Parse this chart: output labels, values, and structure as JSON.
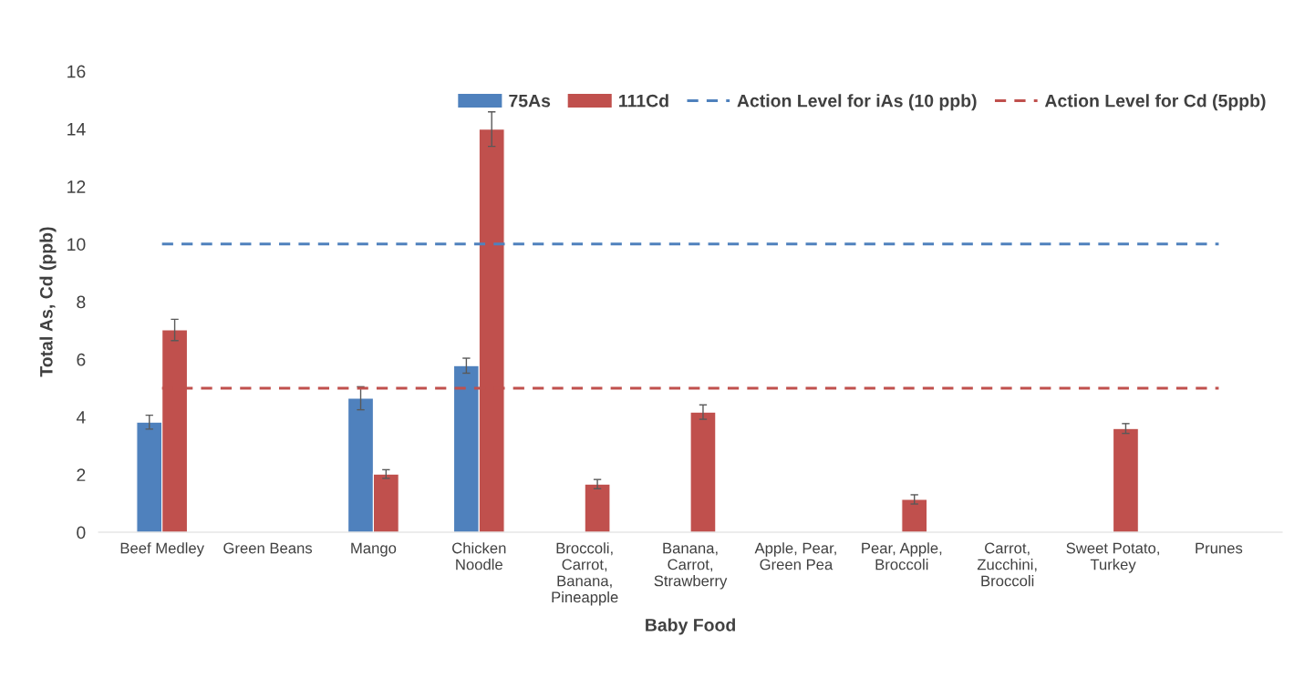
{
  "chart_data": {
    "type": "bar",
    "xlabel": "Baby Food",
    "ylabel": "Total As, Cd (ppb)",
    "categories": [
      "Beef Medley",
      "Green Beans",
      "Mango",
      "Chicken\nNoodle",
      "Broccoli,\nCarrot,\nBanana,\nPineapple",
      "Banana,\nCarrot,\nStrawberry",
      "Apple, Pear,\nGreen Pea",
      "Pear, Apple,\nBroccoli",
      "Carrot,\nZucchini,\nBroccoli",
      "Sweet Potato,\nTurkey",
      "Prunes"
    ],
    "series": [
      {
        "name": "75As",
        "color": "#4f81bd",
        "values": [
          3.82,
          null,
          4.65,
          5.78,
          null,
          null,
          null,
          null,
          null,
          null,
          null
        ],
        "errors": [
          0.24,
          null,
          0.4,
          0.26,
          null,
          null,
          null,
          null,
          null,
          null,
          null
        ]
      },
      {
        "name": "111Cd",
        "color": "#c0504d",
        "values": [
          7.02,
          null,
          2.02,
          13.99,
          1.67,
          4.17,
          null,
          1.14,
          null,
          3.6,
          null
        ],
        "errors": [
          0.37,
          null,
          0.15,
          0.6,
          0.16,
          0.25,
          null,
          0.16,
          null,
          0.17,
          null
        ]
      }
    ],
    "ref_lines": [
      {
        "axis": "y",
        "value": 10,
        "label": "Action Level for iAs (10 ppb)",
        "color": "#4f81bd",
        "line_style": "dashed"
      },
      {
        "axis": "y",
        "value": 5,
        "label": "Action Level for Cd (5ppb)",
        "color": "#c0504d",
        "line_style": "dashed"
      }
    ],
    "ylim": [
      0,
      16
    ],
    "yticks": [
      0,
      2,
      4,
      6,
      8,
      10,
      12,
      14,
      16
    ],
    "grid": false,
    "legend": "top right"
  }
}
